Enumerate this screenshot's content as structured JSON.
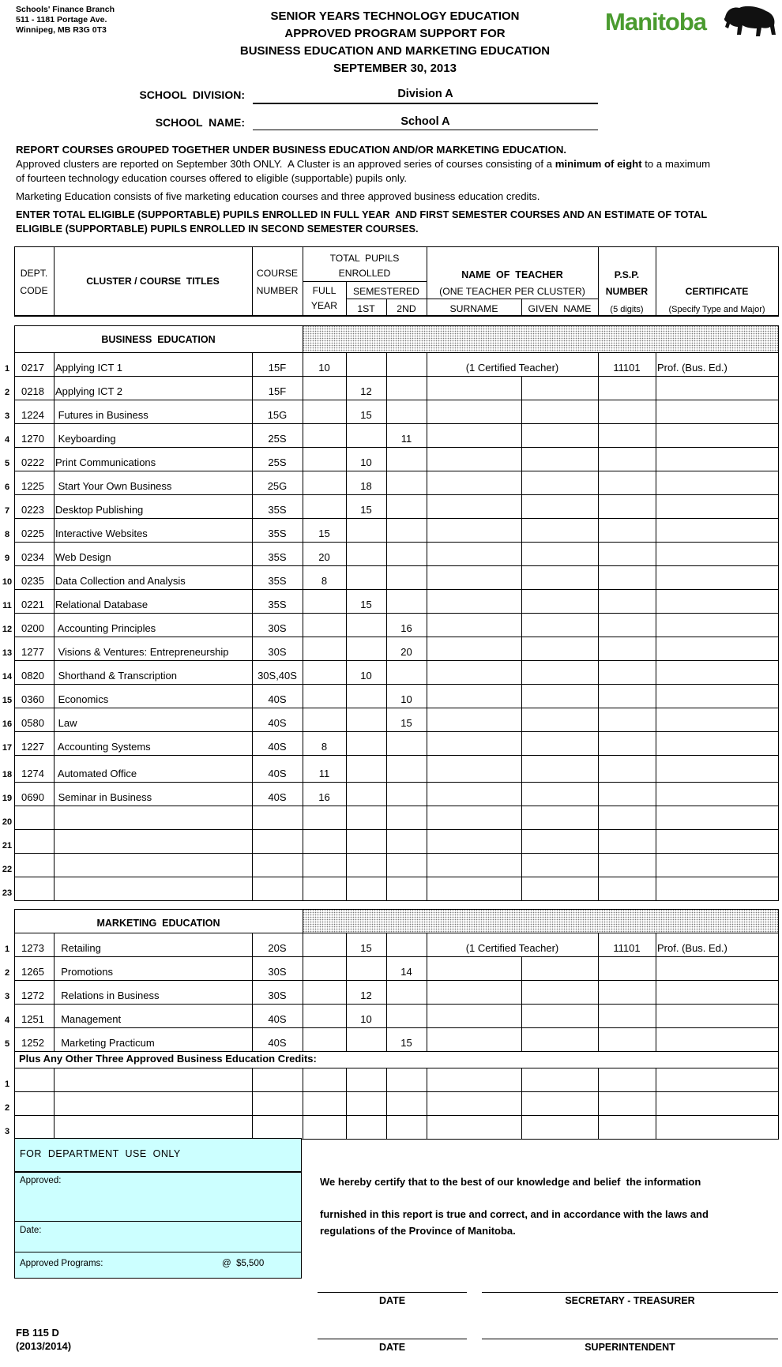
{
  "header": {
    "address": [
      "Schools' Finance Branch",
      "511 - 1181 Portage Ave.",
      "Winnipeg, MB R3G 0T3"
    ],
    "title_lines": [
      "SENIOR YEARS TECHNOLOGY EDUCATION",
      "APPROVED PROGRAM SUPPORT FOR",
      "BUSINESS EDUCATION AND MARKETING EDUCATION",
      "SEPTEMBER 30, 2013"
    ],
    "logo_text": "Manitoba",
    "logo_color": "#4a9b2f"
  },
  "school": {
    "division_label": "SCHOOL  DIVISION:",
    "division_value": "Division A",
    "name_label": "SCHOOL  NAME:",
    "name_value": "School A"
  },
  "instructions": {
    "line1": "REPORT COURSES GROUPED TOGETHER UNDER BUSINESS EDUCATION AND/OR MARKETING EDUCATION.",
    "line2a": "Approved clusters are reported on September 30th ONLY.  A Cluster is an approved series of courses consisting of a ",
    "line2b": "minimum of eight",
    "line2c": " to a maximum",
    "line3": "of fourteen technology education courses offered to eligible (supportable) pupils only.",
    "line4": "Marketing Education consists of five marketing education courses and three approved business education credits.",
    "line5": "ENTER TOTAL ELIGIBLE (SUPPORTABLE) PUPILS ENROLLED IN FULL YEAR  AND FIRST SEMESTER COURSES AND AN ESTIMATE OF TOTAL",
    "line6": "ELIGIBLE (SUPPORTABLE) PUPILS ENROLLED IN SECOND SEMESTER COURSES."
  },
  "table_header": {
    "dept_code": "DEPT.\nCODE",
    "titles": "CLUSTER / COURSE  TITLES",
    "course_number": "COURSE\nNUMBER",
    "total_pupils": "TOTAL  PUPILS\nENROLLED",
    "full_year": "FULL\nYEAR",
    "semestered": "SEMESTERED",
    "first": "1ST",
    "second": "2ND",
    "teacher": "NAME  OF  TEACHER",
    "teacher_note": "(ONE TEACHER PER CLUSTER)",
    "surname": "SURNAME",
    "given_name": "GIVEN  NAME",
    "psp": "P.S.P.",
    "psp_number": "NUMBER",
    "psp_note": "(5 digits)",
    "certificate": "CERTIFICATE",
    "certificate_note": "(Specify Type and Major)"
  },
  "business": {
    "heading": "BUSINESS  EDUCATION",
    "rows": [
      {
        "n": "1",
        "code": "0217",
        "title": "Applying ICT 1",
        "course": "15F",
        "full": "10",
        "s1": "",
        "s2": "",
        "teacher": "(1 Certified Teacher)",
        "psp": "11101",
        "cert": "Prof. (Bus. Ed.)"
      },
      {
        "n": "2",
        "code": "0218",
        "title": "Applying ICT 2",
        "course": "15F",
        "full": "",
        "s1": "12",
        "s2": ""
      },
      {
        "n": "3",
        "code": "1224",
        "title": " Futures in Business",
        "course": "15G",
        "full": "",
        "s1": "15",
        "s2": ""
      },
      {
        "n": "4",
        "code": "1270",
        "title": " Keyboarding",
        "course": "25S",
        "full": "",
        "s1": "",
        "s2": "11"
      },
      {
        "n": "5",
        "code": "0222",
        "title": "Print Communications",
        "course": "25S",
        "full": "",
        "s1": "10",
        "s2": ""
      },
      {
        "n": "6",
        "code": "1225",
        "title": " Start Your Own Business",
        "course": "25G",
        "full": "",
        "s1": "18",
        "s2": ""
      },
      {
        "n": "7",
        "code": "0223",
        "title": "Desktop Publishing",
        "course": "35S",
        "full": "",
        "s1": "15",
        "s2": ""
      },
      {
        "n": "8",
        "code": "0225",
        "title": "Interactive Websites",
        "course": "35S",
        "full": "15",
        "s1": "",
        "s2": ""
      },
      {
        "n": "9",
        "code": "0234",
        "title": "Web Design",
        "course": "35S",
        "full": "20",
        "s1": "",
        "s2": ""
      },
      {
        "n": "10",
        "code": "0235",
        "title": "Data Collection and Analysis",
        "course": "35S",
        "full": "8",
        "s1": "",
        "s2": ""
      },
      {
        "n": "11",
        "code": "0221",
        "title": "Relational Database",
        "course": "35S",
        "full": "",
        "s1": "15",
        "s2": ""
      },
      {
        "n": "12",
        "code": "0200",
        "title": " Accounting Principles",
        "course": "30S",
        "full": "",
        "s1": "",
        "s2": "16"
      },
      {
        "n": "13",
        "code": "1277",
        "title": " Visions & Ventures: Entrepreneurship",
        "course": "30S",
        "full": "",
        "s1": "",
        "s2": "20"
      },
      {
        "n": "14",
        "code": "0820",
        "title": " Shorthand & Transcription",
        "course": "30S,40S",
        "full": "",
        "s1": "10",
        "s2": ""
      },
      {
        "n": "15",
        "code": "0360",
        "title": " Economics",
        "course": "40S",
        "full": "",
        "s1": "",
        "s2": "10"
      },
      {
        "n": "16",
        "code": "0580",
        "title": " Law",
        "course": "40S",
        "full": "",
        "s1": "",
        "s2": "15"
      },
      {
        "n": "17",
        "code": "1227",
        "title": " Accounting Systems",
        "course": "40S",
        "full": "8",
        "s1": "",
        "s2": ""
      },
      {
        "n": "18",
        "code": "1274",
        "title": " Automated Office",
        "course": "40S",
        "full": "11",
        "s1": "",
        "s2": ""
      },
      {
        "n": "19",
        "code": "0690",
        "title": " Seminar in Business",
        "course": "40S",
        "full": "16",
        "s1": "",
        "s2": ""
      },
      {
        "n": "20"
      },
      {
        "n": "21"
      },
      {
        "n": "22"
      },
      {
        "n": "23"
      }
    ]
  },
  "marketing": {
    "heading": "MARKETING  EDUCATION",
    "rows": [
      {
        "n": "1",
        "code": "1273",
        "title": "  Retailing",
        "course": "20S",
        "full": "",
        "s1": "15",
        "s2": "",
        "teacher": "(1 Certified Teacher)",
        "psp": "11101",
        "cert": "Prof. (Bus. Ed.)"
      },
      {
        "n": "2",
        "code": "1265",
        "title": "  Promotions",
        "course": "30S",
        "full": "",
        "s1": "",
        "s2": "14"
      },
      {
        "n": "3",
        "code": "1272",
        "title": "  Relations in Business",
        "course": "30S",
        "full": "",
        "s1": "12",
        "s2": ""
      },
      {
        "n": "4",
        "code": "1251",
        "title": "  Management",
        "course": "40S",
        "full": "",
        "s1": "10",
        "s2": ""
      },
      {
        "n": "5",
        "code": "1252",
        "title": "  Marketing Practicum",
        "course": "40S",
        "full": "",
        "s1": "",
        "s2": "15"
      }
    ],
    "plus_label": "Plus Any Other Three Approved Business Education Credits:",
    "extra_rows": [
      {
        "n": "1"
      },
      {
        "n": "2"
      },
      {
        "n": "3"
      }
    ]
  },
  "department": {
    "heading": "FOR  DEPARTMENT  USE  ONLY",
    "approved": "Approved:",
    "date": "Date:",
    "programs": "Approved Programs:",
    "rate": "@  $5,500",
    "bg_color": "#ccffff"
  },
  "certification": {
    "line1": "We hereby certify that to the best of our knowledge and belief  the information",
    "line2": "furnished in this report is true and correct, and in accordance with the laws and",
    "line3": "regulations of the Province of Manitoba."
  },
  "signatures": {
    "date1": "DATE",
    "role1": "SECRETARY - TREASURER",
    "date2": "DATE",
    "role2": "SUPERINTENDENT"
  },
  "form": {
    "code": "FB 115 D",
    "year": "(2013/2014)"
  }
}
